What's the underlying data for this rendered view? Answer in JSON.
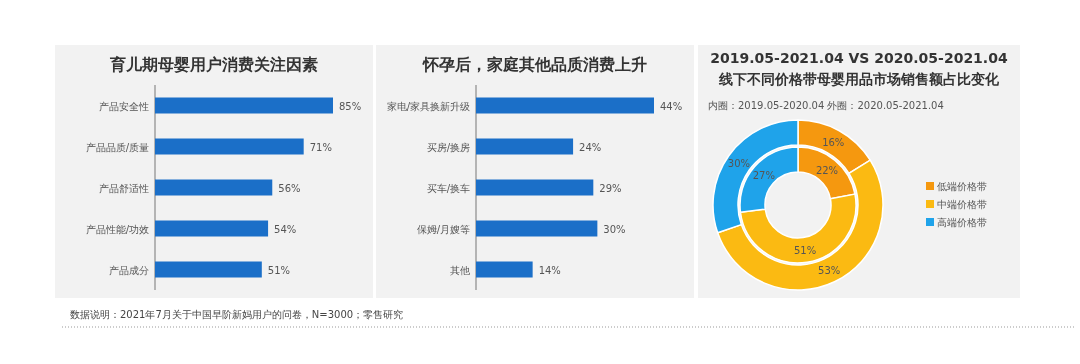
{
  "chart_data": [
    {
      "type": "bar",
      "orientation": "horizontal",
      "title": "育儿期母婴用户消费关注因素",
      "categories": [
        "产品安全性",
        "产品品质/质量",
        "产品舒适性",
        "产品性能/功效",
        "产品成分"
      ],
      "values": [
        85,
        71,
        56,
        54,
        51
      ],
      "value_labels": [
        "85%",
        "71%",
        "56%",
        "54%",
        "51%"
      ],
      "color": "#1b6fc8"
    },
    {
      "type": "bar",
      "orientation": "horizontal",
      "title": "怀孕后，家庭其他品质消费上升",
      "categories": [
        "家电/家具换新升级",
        "买房/换房",
        "买车/换车",
        "保姆/月嫂等",
        "其他"
      ],
      "values": [
        44,
        24,
        29,
        30,
        14
      ],
      "value_labels": [
        "44%",
        "24%",
        "29%",
        "30%",
        "14%"
      ],
      "color": "#1b6fc8"
    },
    {
      "type": "donut",
      "title": "2019.05-2021.04 VS 2020.05-2021.04\n线下不同价格带母婴用品市场销售额占比变化",
      "categories": [
        "低端价格带",
        "中端价格带",
        "高端价格带"
      ],
      "subtitle": "内圈：2019.05-2020.04    外圈：2020.05-2021.04",
      "colors": [
        "#f5980f",
        "#fbba12",
        "#1fa3ea"
      ],
      "series": [
        {
          "values": [
            22,
            51,
            27
          ],
          "value_labels": [
            "22%",
            "51%",
            "27%"
          ]
        },
        {
          "values": [
            16,
            53,
            30
          ],
          "value_labels": [
            "16%",
            "53%",
            "30%"
          ]
        }
      ],
      "legend": "right",
      "annotations": [
        "数据说明：2021年7月关于中国早阶新妈用户的问卷，N=3000；零售研究"
      ]
    }
  ]
}
